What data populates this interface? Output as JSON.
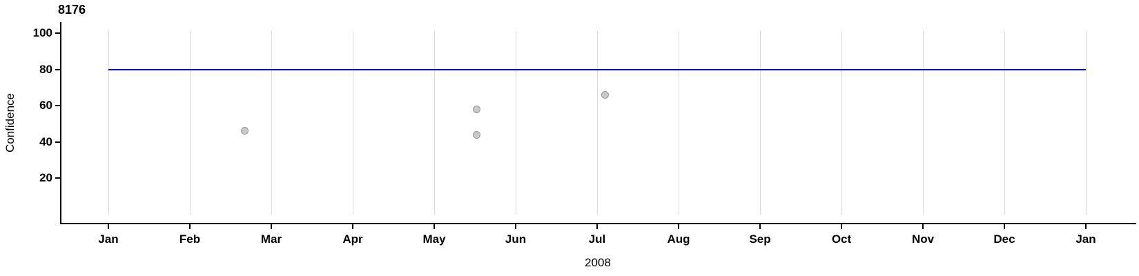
{
  "chart_data": {
    "type": "scatter",
    "title": "8176",
    "xlabel": "2008",
    "ylabel": "Confidence",
    "x_tick_labels": [
      "Jan",
      "Feb",
      "Mar",
      "Apr",
      "May",
      "Jun",
      "Jul",
      "Aug",
      "Sep",
      "Oct",
      "Nov",
      "Dec",
      "Jan"
    ],
    "y_tick_values": [
      20,
      40,
      60,
      80,
      100
    ],
    "ylim": [
      0,
      105
    ],
    "x_range": [
      "2008-01-01",
      "2009-01-01"
    ],
    "grid": "vertical-at-month-starts",
    "legend": "none",
    "points": [
      {
        "date": "2008-02-20",
        "confidence": 46
      },
      {
        "date": "2008-05-17",
        "confidence": 58
      },
      {
        "date": "2008-05-17",
        "confidence": 44
      },
      {
        "date": "2008-07-04",
        "confidence": 66
      }
    ],
    "reference_line": {
      "confidence": 80
    }
  },
  "colors": {
    "reference_line": "#0000CD",
    "point_fill": "#C9C9C9",
    "point_stroke": "#979797",
    "gridline": "#D9D9D9",
    "axis": "#000000",
    "text": "#000000"
  }
}
